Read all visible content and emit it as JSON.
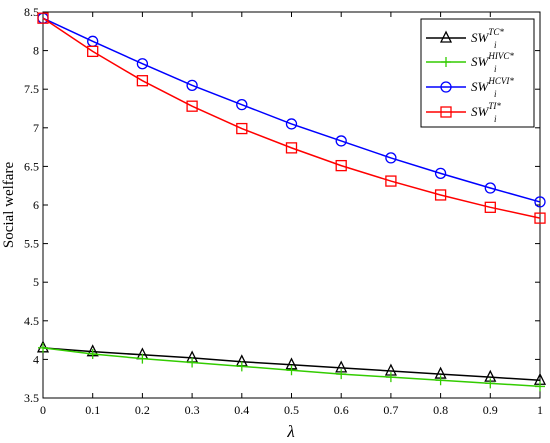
{
  "chart_data": {
    "type": "line",
    "xlabel": "λ",
    "ylabel": "Social welfare",
    "xlim": [
      0,
      1
    ],
    "ylim": [
      3.5,
      8.5
    ],
    "x_ticks": [
      "0",
      "0.1",
      "0.2",
      "0.3",
      "0.4",
      "0.5",
      "0.6",
      "0.7",
      "0.8",
      "0.9",
      "1"
    ],
    "y_ticks": [
      "3.5",
      "4",
      "4.5",
      "5",
      "5.5",
      "6",
      "6.5",
      "7",
      "7.5",
      "8",
      "8.5"
    ],
    "grid": false,
    "legend_position": "top-right",
    "x": [
      0,
      0.1,
      0.2,
      0.3,
      0.4,
      0.5,
      0.6,
      0.7,
      0.8,
      0.9,
      1
    ],
    "series": [
      {
        "name": "SW_i^{TC*}",
        "legend": {
          "base": "SW",
          "sub": "i",
          "sup": "TC*"
        },
        "color": "#000000",
        "marker": "triangle",
        "values": [
          4.15,
          4.1,
          4.06,
          4.02,
          3.97,
          3.93,
          3.89,
          3.85,
          3.81,
          3.77,
          3.73
        ]
      },
      {
        "name": "SW_i^{HIVC*}",
        "legend": {
          "base": "SW",
          "sub": "i",
          "sup": "HIVC*"
        },
        "color": "#33cc00",
        "marker": "plus",
        "values": [
          4.15,
          4.07,
          4.01,
          3.96,
          3.91,
          3.86,
          3.81,
          3.77,
          3.73,
          3.69,
          3.65
        ]
      },
      {
        "name": "SW_i^{HCVI*}",
        "legend": {
          "base": "SW",
          "sub": "i",
          "sup": "HCVI*"
        },
        "color": "#0000ff",
        "marker": "circle",
        "values": [
          8.42,
          8.12,
          7.83,
          7.55,
          7.3,
          7.05,
          6.83,
          6.61,
          6.41,
          6.22,
          6.04
        ]
      },
      {
        "name": "SW_i^{TI*}",
        "legend": {
          "base": "SW",
          "sub": "i",
          "sup": "TI*"
        },
        "color": "#ff0000",
        "marker": "square",
        "values": [
          8.42,
          7.99,
          7.61,
          7.28,
          6.99,
          6.74,
          6.51,
          6.31,
          6.13,
          5.97,
          5.83
        ]
      }
    ]
  }
}
